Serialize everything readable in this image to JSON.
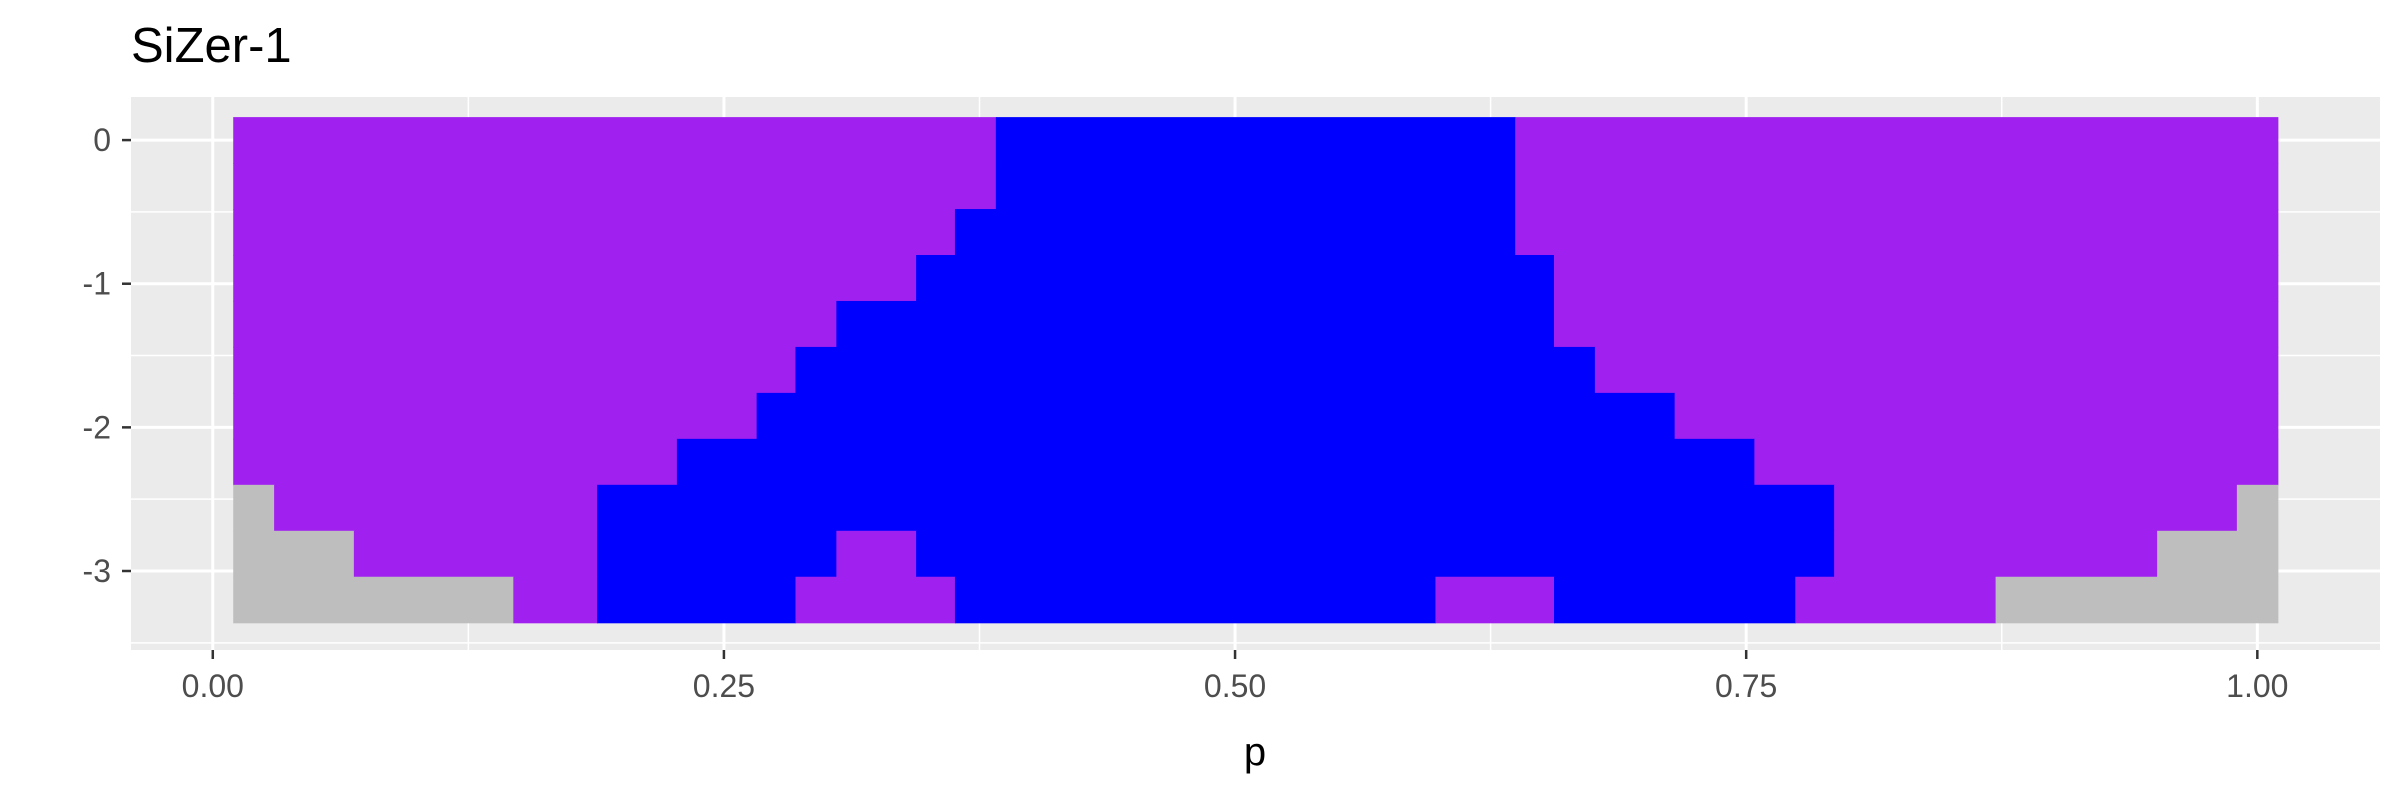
{
  "chart_data": {
    "type": "heatmap",
    "title": "SiZer-1",
    "xlabel": "p",
    "ylabel": "",
    "xlim": [
      -0.04,
      1.06
    ],
    "ylim": [
      -3.55,
      0.3
    ],
    "x_ticks": [
      {
        "value": 0.0,
        "label": "0.00"
      },
      {
        "value": 0.25,
        "label": "0.25"
      },
      {
        "value": 0.5,
        "label": "0.50"
      },
      {
        "value": 0.75,
        "label": "0.75"
      },
      {
        "value": 1.0,
        "label": "1.00"
      }
    ],
    "y_ticks": [
      {
        "value": 0,
        "label": "0"
      },
      {
        "value": -1,
        "label": "-1"
      },
      {
        "value": -2,
        "label": "-2"
      },
      {
        "value": -3,
        "label": "-3"
      }
    ],
    "grid": true,
    "panel_background": "#ebebeb",
    "legend": "none",
    "colors": {
      "increasing": "#0000ff",
      "not_significant": "#a020f0",
      "insufficient_data": "#bebebe"
    },
    "y_levels": [
      0,
      -0.32,
      -0.64,
      -0.96,
      -1.28,
      -1.6,
      -1.92,
      -2.24,
      -2.56,
      -2.88,
      -3.2
    ],
    "rows": [
      {
        "y": 0,
        "segments": [
          {
            "x0": 0.01,
            "x1": 0.383,
            "state": "not_significant"
          },
          {
            "x0": 0.383,
            "x1": 0.637,
            "state": "increasing"
          },
          {
            "x0": 0.637,
            "x1": 1.01,
            "state": "not_significant"
          }
        ]
      },
      {
        "y": -0.32,
        "segments": [
          {
            "x0": 0.01,
            "x1": 0.383,
            "state": "not_significant"
          },
          {
            "x0": 0.383,
            "x1": 0.637,
            "state": "increasing"
          },
          {
            "x0": 0.637,
            "x1": 1.01,
            "state": "not_significant"
          }
        ]
      },
      {
        "y": -0.64,
        "segments": [
          {
            "x0": 0.01,
            "x1": 0.363,
            "state": "not_significant"
          },
          {
            "x0": 0.363,
            "x1": 0.637,
            "state": "increasing"
          },
          {
            "x0": 0.637,
            "x1": 1.01,
            "state": "not_significant"
          }
        ]
      },
      {
        "y": -0.96,
        "segments": [
          {
            "x0": 0.01,
            "x1": 0.344,
            "state": "not_significant"
          },
          {
            "x0": 0.344,
            "x1": 0.656,
            "state": "increasing"
          },
          {
            "x0": 0.656,
            "x1": 1.01,
            "state": "not_significant"
          }
        ]
      },
      {
        "y": -1.28,
        "segments": [
          {
            "x0": 0.01,
            "x1": 0.305,
            "state": "not_significant"
          },
          {
            "x0": 0.305,
            "x1": 0.656,
            "state": "increasing"
          },
          {
            "x0": 0.656,
            "x1": 1.01,
            "state": "not_significant"
          }
        ]
      },
      {
        "y": -1.6,
        "segments": [
          {
            "x0": 0.01,
            "x1": 0.285,
            "state": "not_significant"
          },
          {
            "x0": 0.285,
            "x1": 0.676,
            "state": "increasing"
          },
          {
            "x0": 0.676,
            "x1": 1.01,
            "state": "not_significant"
          }
        ]
      },
      {
        "y": -1.92,
        "segments": [
          {
            "x0": 0.01,
            "x1": 0.266,
            "state": "not_significant"
          },
          {
            "x0": 0.266,
            "x1": 0.715,
            "state": "increasing"
          },
          {
            "x0": 0.715,
            "x1": 1.01,
            "state": "not_significant"
          }
        ]
      },
      {
        "y": -2.24,
        "segments": [
          {
            "x0": 0.01,
            "x1": 0.227,
            "state": "not_significant"
          },
          {
            "x0": 0.227,
            "x1": 0.754,
            "state": "increasing"
          },
          {
            "x0": 0.754,
            "x1": 1.01,
            "state": "not_significant"
          }
        ]
      },
      {
        "y": -2.56,
        "segments": [
          {
            "x0": 0.01,
            "x1": 0.03,
            "state": "insufficient_data"
          },
          {
            "x0": 0.03,
            "x1": 0.188,
            "state": "not_significant"
          },
          {
            "x0": 0.188,
            "x1": 0.793,
            "state": "increasing"
          },
          {
            "x0": 0.793,
            "x1": 0.99,
            "state": "not_significant"
          },
          {
            "x0": 0.99,
            "x1": 1.01,
            "state": "insufficient_data"
          }
        ]
      },
      {
        "y": -2.88,
        "segments": [
          {
            "x0": 0.01,
            "x1": 0.069,
            "state": "insufficient_data"
          },
          {
            "x0": 0.069,
            "x1": 0.188,
            "state": "not_significant"
          },
          {
            "x0": 0.188,
            "x1": 0.305,
            "state": "increasing"
          },
          {
            "x0": 0.305,
            "x1": 0.344,
            "state": "not_significant"
          },
          {
            "x0": 0.344,
            "x1": 0.793,
            "state": "increasing"
          },
          {
            "x0": 0.793,
            "x1": 0.951,
            "state": "not_significant"
          },
          {
            "x0": 0.951,
            "x1": 1.01,
            "state": "insufficient_data"
          }
        ]
      },
      {
        "y": -3.2,
        "segments": [
          {
            "x0": 0.01,
            "x1": 0.147,
            "state": "insufficient_data"
          },
          {
            "x0": 0.147,
            "x1": 0.188,
            "state": "not_significant"
          },
          {
            "x0": 0.188,
            "x1": 0.285,
            "state": "increasing"
          },
          {
            "x0": 0.285,
            "x1": 0.363,
            "state": "not_significant"
          },
          {
            "x0": 0.363,
            "x1": 0.598,
            "state": "increasing"
          },
          {
            "x0": 0.598,
            "x1": 0.656,
            "state": "not_significant"
          },
          {
            "x0": 0.656,
            "x1": 0.774,
            "state": "increasing"
          },
          {
            "x0": 0.774,
            "x1": 0.872,
            "state": "not_significant"
          },
          {
            "x0": 0.872,
            "x1": 1.01,
            "state": "insufficient_data"
          }
        ]
      }
    ]
  }
}
